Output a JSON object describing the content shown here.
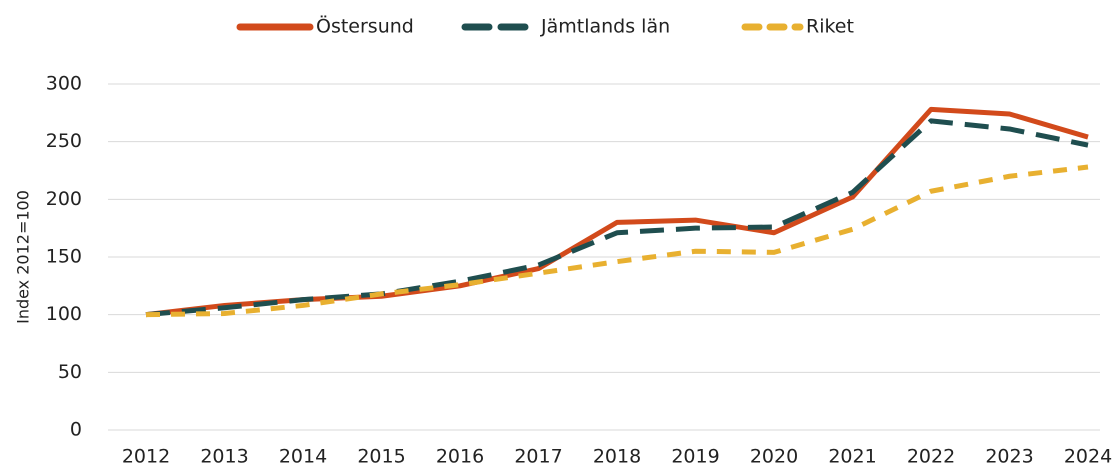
{
  "chart_data": {
    "type": "line",
    "y_label": "Index 2012=100",
    "categories": [
      "2012",
      "2013",
      "2014",
      "2015",
      "2016",
      "2017",
      "2018",
      "2019",
      "2020",
      "2021",
      "2022",
      "2023",
      "2024"
    ],
    "series": [
      {
        "name": "Östersund",
        "color": "#d24a1b",
        "dash": "none",
        "values": [
          100,
          108,
          113,
          116,
          125,
          140,
          180,
          182,
          171,
          202,
          278,
          274,
          254
        ]
      },
      {
        "name": "Jämtlands län",
        "color": "#1f4e4f",
        "dash": "24,12",
        "values": [
          100,
          106,
          113,
          118,
          129,
          143,
          171,
          175,
          176,
          206,
          268,
          261,
          247
        ]
      },
      {
        "name": "Riket",
        "color": "#e8b030",
        "dash": "14,11",
        "values": [
          100,
          101,
          108,
          118,
          126,
          136,
          146,
          155,
          154,
          174,
          207,
          220,
          228
        ]
      }
    ],
    "ylim": [
      0,
      300
    ],
    "yticks": [
      0,
      50,
      100,
      150,
      200,
      250,
      300
    ],
    "grid": true,
    "legend": "top"
  }
}
